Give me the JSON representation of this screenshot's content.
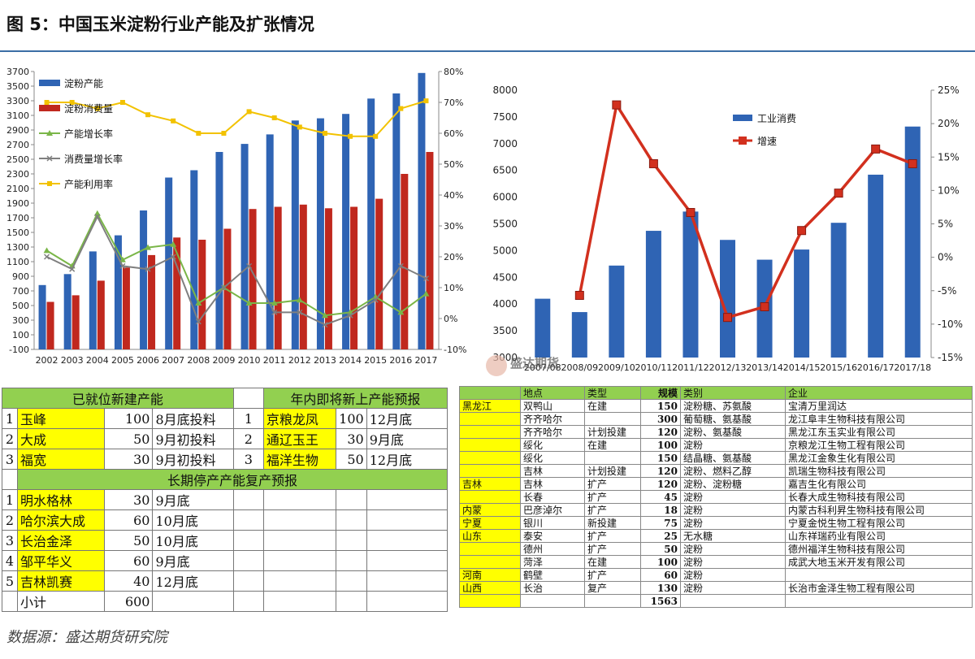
{
  "title": "图 5：中国玉米淀粉行业产能及扩张情况",
  "source": "数据源：盛达期货研究院",
  "watermark": "盛达期货",
  "chart_data": [
    {
      "type": "bar",
      "categories": [
        "2002",
        "2003",
        "2004",
        "2005",
        "2006",
        "2007",
        "2008",
        "2009",
        "2010",
        "2011",
        "2012",
        "2013",
        "2014",
        "2015",
        "2016",
        "2017"
      ],
      "ylim_left": [
        -100,
        3700
      ],
      "yticks_left": [
        "-100",
        "100",
        "300",
        "500",
        "700",
        "900",
        "1100",
        "1300",
        "1500",
        "1700",
        "1900",
        "2100",
        "2300",
        "2500",
        "2700",
        "2900",
        "3100",
        "3300",
        "3500",
        "3700"
      ],
      "ylim_right": [
        -10,
        80
      ],
      "yticks_right": [
        "-10%",
        "0%",
        "10%",
        "20%",
        "30%",
        "40%",
        "50%",
        "60%",
        "70%",
        "80%"
      ],
      "series": [
        {
          "name": "淀粉产能",
          "kind": "bar",
          "axis": "left",
          "color": "#2f64b4",
          "values": [
            780,
            930,
            1240,
            1460,
            1800,
            2250,
            2350,
            2600,
            2710,
            2840,
            3030,
            3060,
            3120,
            3330,
            3400,
            3680
          ]
        },
        {
          "name": "淀粉消费量",
          "kind": "bar",
          "axis": "left",
          "color": "#c0281e",
          "values": [
            550,
            640,
            840,
            1020,
            1190,
            1430,
            1400,
            1550,
            1820,
            1850,
            1880,
            1830,
            1850,
            1960,
            2300,
            2600
          ]
        },
        {
          "name": "产能增长率",
          "kind": "line",
          "axis": "right",
          "color": "#7ab648",
          "marker": "triangle",
          "values": [
            22,
            17,
            34,
            19,
            23,
            24,
            5,
            10,
            5,
            5,
            6,
            1,
            2,
            7,
            2,
            8
          ]
        },
        {
          "name": "消费量增长率",
          "kind": "line",
          "axis": "right",
          "color": "#7f7f7f",
          "marker": "x",
          "values": [
            20,
            16,
            33,
            17,
            16,
            20,
            -1,
            10,
            17,
            2,
            2,
            -2,
            1,
            6,
            17,
            13
          ]
        },
        {
          "name": "产能利用率",
          "kind": "line",
          "axis": "right",
          "color": "#f2c200",
          "marker": "square",
          "values": [
            70,
            70,
            68,
            70,
            66,
            64,
            60,
            60,
            67,
            65,
            62,
            60,
            59,
            59,
            68,
            70.5
          ]
        }
      ]
    },
    {
      "type": "bar",
      "categories": [
        "2007/08",
        "2008/09",
        "2009/10",
        "2010/11",
        "2011/12",
        "2012/13",
        "2013/14",
        "2014/15",
        "2015/16",
        "2016/17",
        "2017/18"
      ],
      "ylim_left": [
        3000,
        8000
      ],
      "yticks_left": [
        "3000",
        "3500",
        "4000",
        "4500",
        "5000",
        "5500",
        "6000",
        "6500",
        "7000",
        "7500",
        "8000"
      ],
      "ylim_right": [
        -15,
        25
      ],
      "yticks_right": [
        "-15%",
        "-10%",
        "-5%",
        "0%",
        "5%",
        "10%",
        "15%",
        "20%",
        "25%"
      ],
      "series": [
        {
          "name": "工业消费",
          "kind": "bar",
          "axis": "left",
          "color": "#2f64b4",
          "values": [
            4100,
            3850,
            4720,
            5370,
            5730,
            5200,
            4830,
            5020,
            5520,
            6420,
            7320
          ]
        },
        {
          "name": "增速",
          "kind": "line",
          "axis": "right",
          "color": "#d2301e",
          "marker": "square",
          "values": [
            null,
            -5.7,
            22.8,
            14.0,
            6.7,
            -9.0,
            -7.4,
            4.0,
            9.6,
            16.2,
            14.0
          ]
        }
      ]
    }
  ],
  "left_table": {
    "head1": "已就位新建产能",
    "head2": "年内即将新上产能预报",
    "rows1": [
      {
        "n": "1",
        "a": "玉峰",
        "b": "100",
        "c": "8月底投料",
        "d": "1",
        "e": "京粮龙凤",
        "f": "100",
        "g": "12月底"
      },
      {
        "n": "2",
        "a": "大成",
        "b": "50",
        "c": "9月初投料",
        "d": "2",
        "e": "通辽玉王",
        "f": "30",
        "g": "9月底"
      },
      {
        "n": "3",
        "a": "福宽",
        "b": "30",
        "c": "9月初投料",
        "d": "3",
        "e": "福洋生物",
        "f": "50",
        "g": "12月底"
      }
    ],
    "head3": "长期停产产能复产预报",
    "rows2": [
      {
        "n": "1",
        "a": "明水格林",
        "b": "30",
        "c": "9月底"
      },
      {
        "n": "2",
        "a": "哈尔滨大成",
        "b": "60",
        "c": "10月底"
      },
      {
        "n": "3",
        "a": "长治金泽",
        "b": "50",
        "c": "10月底"
      },
      {
        "n": "4",
        "a": "邹平华义",
        "b": "60",
        "c": "9月底"
      },
      {
        "n": "5",
        "a": "吉林凯赛",
        "b": "40",
        "c": "12月底"
      }
    ],
    "subtotal_label": "小计",
    "subtotal": "600"
  },
  "right_table": {
    "headers": [
      "",
      "地点",
      "类型",
      "规模",
      "类别",
      "企业"
    ],
    "rows": [
      [
        "黑龙江",
        "双鸭山",
        "在建",
        "150",
        "淀粉糖、苏氨酸",
        "宝清万里润达"
      ],
      [
        "",
        "齐齐哈尔",
        "",
        "300",
        "葡萄糖、氨基酸",
        "龙江阜丰生物科技有限公司"
      ],
      [
        "",
        "齐齐哈尔",
        "计划投建",
        "120",
        "淀粉、氨基酸",
        "黑龙江东玉实业有限公司"
      ],
      [
        "",
        "绥化",
        "在建",
        "100",
        "淀粉",
        "京粮龙江生物工程有限公司"
      ],
      [
        "",
        "绥化",
        "",
        "150",
        "结晶糖、氨基酸",
        "黑龙江金象生化有限公司"
      ],
      [
        "",
        "吉林",
        "计划投建",
        "120",
        "淀粉、燃料乙醇",
        "凯瑞生物科技有限公司"
      ],
      [
        "吉林",
        "吉林",
        "扩产",
        "120",
        "淀粉、淀粉糖",
        "嘉吉生化有限公司"
      ],
      [
        "",
        "长春",
        "扩产",
        "45",
        "淀粉",
        "长春大成生物科技有限公司"
      ],
      [
        "内蒙",
        "巴彦淖尔",
        "扩产",
        "18",
        "淀粉",
        "内蒙古科利昇生物科技有限公司"
      ],
      [
        "宁夏",
        "银川",
        "新投建",
        "75",
        "淀粉",
        "宁夏金悦生物工程有限公司"
      ],
      [
        "山东",
        "泰安",
        "扩产",
        "25",
        "无水糖",
        "山东祥瑞药业有限公司"
      ],
      [
        "",
        "德州",
        "扩产",
        "50",
        "淀粉",
        "德州福洋生物科技有限公司"
      ],
      [
        "",
        "菏泽",
        "在建",
        "100",
        "淀粉",
        "成武大地玉米开发有限公司"
      ],
      [
        "河南",
        "鹤壁",
        "扩产",
        "60",
        "淀粉",
        ""
      ],
      [
        "山西",
        "长治",
        "复产",
        "130",
        "淀粉",
        "长治市金泽生物工程有限公司"
      ],
      [
        "",
        "",
        "",
        "1563",
        "",
        ""
      ]
    ]
  }
}
